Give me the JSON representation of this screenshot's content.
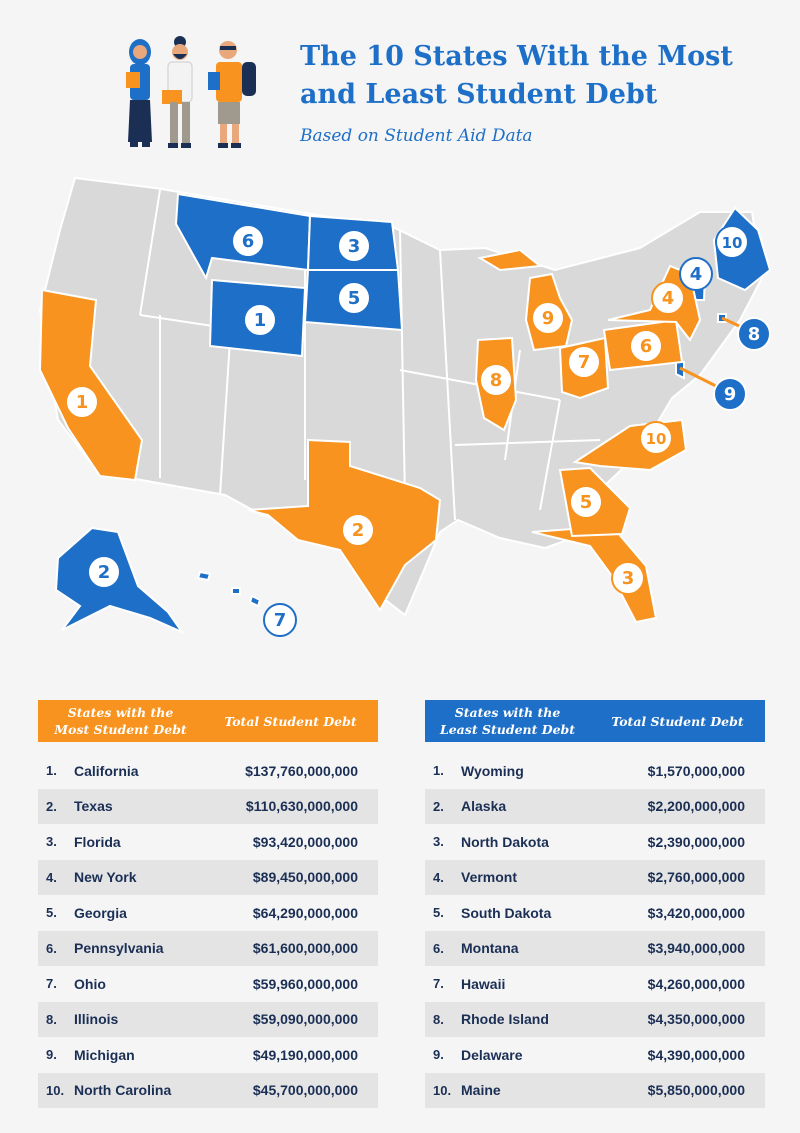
{
  "header": {
    "title_line1": "The 10 States With the Most",
    "title_line2": "and Least Student Debt",
    "subtitle": "Based on Student Aid Data"
  },
  "colors": {
    "most": "#f7931e",
    "least": "#1e6fc7",
    "other": "#d9d9d9",
    "text_dark": "#1b2f55"
  },
  "map": {
    "most_markers": [
      {
        "rank": "1",
        "state": "California"
      },
      {
        "rank": "2",
        "state": "Texas"
      },
      {
        "rank": "3",
        "state": "Florida"
      },
      {
        "rank": "4",
        "state": "New York"
      },
      {
        "rank": "5",
        "state": "Georgia"
      },
      {
        "rank": "6",
        "state": "Pennsylvania"
      },
      {
        "rank": "7",
        "state": "Ohio"
      },
      {
        "rank": "8",
        "state": "Illinois"
      },
      {
        "rank": "9",
        "state": "Michigan"
      },
      {
        "rank": "10",
        "state": "North Carolina"
      }
    ],
    "least_markers": [
      {
        "rank": "1",
        "state": "Wyoming"
      },
      {
        "rank": "2",
        "state": "Alaska"
      },
      {
        "rank": "3",
        "state": "North Dakota"
      },
      {
        "rank": "4",
        "state": "Vermont"
      },
      {
        "rank": "5",
        "state": "South Dakota"
      },
      {
        "rank": "6",
        "state": "Montana"
      },
      {
        "rank": "7",
        "state": "Hawaii"
      },
      {
        "rank": "8",
        "state": "Rhode Island"
      },
      {
        "rank": "9",
        "state": "Delaware"
      },
      {
        "rank": "10",
        "state": "Maine"
      }
    ]
  },
  "tables": {
    "most": {
      "header_line1": "States with the",
      "header_line2": "Most Student Debt",
      "header_value": "Total Student Debt",
      "rows": [
        {
          "rank": "1.",
          "state": "California",
          "amount": "$137,760,000,000"
        },
        {
          "rank": "2.",
          "state": "Texas",
          "amount": "$110,630,000,000"
        },
        {
          "rank": "3.",
          "state": "Florida",
          "amount": "$93,420,000,000"
        },
        {
          "rank": "4.",
          "state": "New York",
          "amount": "$89,450,000,000"
        },
        {
          "rank": "5.",
          "state": "Georgia",
          "amount": "$64,290,000,000"
        },
        {
          "rank": "6.",
          "state": "Pennsylvania",
          "amount": "$61,600,000,000"
        },
        {
          "rank": "7.",
          "state": "Ohio",
          "amount": "$59,960,000,000"
        },
        {
          "rank": "8.",
          "state": "Illinois",
          "amount": "$59,090,000,000"
        },
        {
          "rank": "9.",
          "state": "Michigan",
          "amount": "$49,190,000,000"
        },
        {
          "rank": "10.",
          "state": "North Carolina",
          "amount": "$45,700,000,000"
        }
      ]
    },
    "least": {
      "header_line1": "States with the",
      "header_line2": "Least Student Debt",
      "header_value": "Total Student Debt",
      "rows": [
        {
          "rank": "1.",
          "state": "Wyoming",
          "amount": "$1,570,000,000"
        },
        {
          "rank": "2.",
          "state": "Alaska",
          "amount": "$2,200,000,000"
        },
        {
          "rank": "3.",
          "state": "North Dakota",
          "amount": "$2,390,000,000"
        },
        {
          "rank": "4.",
          "state": "Vermont",
          "amount": "$2,760,000,000"
        },
        {
          "rank": "5.",
          "state": "South Dakota",
          "amount": "$3,420,000,000"
        },
        {
          "rank": "6.",
          "state": "Montana",
          "amount": "$3,940,000,000"
        },
        {
          "rank": "7.",
          "state": "Hawaii",
          "amount": "$4,260,000,000"
        },
        {
          "rank": "8.",
          "state": "Rhode Island",
          "amount": "$4,350,000,000"
        },
        {
          "rank": "9.",
          "state": "Delaware",
          "amount": "$4,390,000,000"
        },
        {
          "rank": "10.",
          "state": "Maine",
          "amount": "$5,850,000,000"
        }
      ]
    }
  }
}
